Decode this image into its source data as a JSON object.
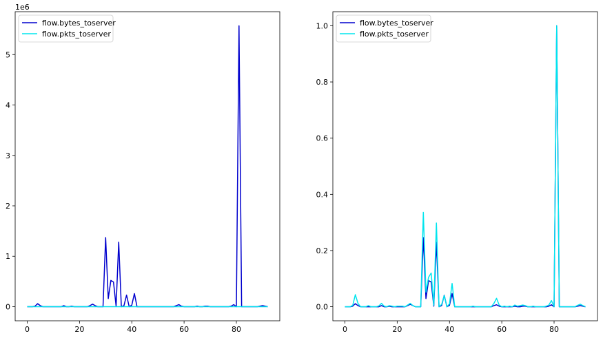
{
  "chart_data": [
    {
      "type": "line",
      "title": "",
      "xlabel": "",
      "ylabel": "",
      "offset_label": "1e6",
      "xlim": [
        -4.6,
        96.6
      ],
      "ylim": [
        -0.28,
        5.85
      ],
      "xticks": [
        0,
        20,
        40,
        60,
        80
      ],
      "yticks": [
        0,
        1,
        2,
        3,
        4,
        5
      ],
      "xtick_labels": [
        "0",
        "20",
        "40",
        "60",
        "80"
      ],
      "ytick_labels": [
        "0",
        "1",
        "2",
        "3",
        "4",
        "5"
      ],
      "grid": false,
      "legend_position": "upper-left",
      "series": [
        {
          "name": "flow.bytes_toserver",
          "color": "#0000cd",
          "x": [
            0,
            1,
            2,
            3,
            4,
            5,
            6,
            7,
            8,
            9,
            10,
            11,
            12,
            13,
            14,
            15,
            16,
            17,
            18,
            19,
            20,
            21,
            22,
            23,
            24,
            25,
            26,
            27,
            28,
            29,
            30,
            31,
            32,
            33,
            34,
            35,
            36,
            37,
            38,
            39,
            40,
            41,
            42,
            43,
            44,
            45,
            46,
            47,
            48,
            49,
            50,
            51,
            52,
            53,
            54,
            55,
            56,
            57,
            58,
            59,
            60,
            61,
            62,
            63,
            64,
            65,
            66,
            67,
            68,
            69,
            70,
            71,
            72,
            73,
            74,
            75,
            76,
            77,
            78,
            79,
            80,
            81,
            82,
            83,
            84,
            85,
            86,
            87,
            88,
            89,
            90,
            91,
            92
          ],
          "values": [
            0,
            0,
            0,
            0.01,
            0.06,
            0.02,
            0,
            0,
            0,
            0,
            0,
            0,
            0,
            0,
            0.02,
            0,
            0,
            0.01,
            0,
            0,
            0,
            0,
            0,
            0,
            0.02,
            0.05,
            0.02,
            0,
            0,
            0,
            1.37,
            0.16,
            0.52,
            0.49,
            0.01,
            1.28,
            0,
            0.02,
            0.23,
            0,
            0.03,
            0.26,
            0,
            0,
            0,
            0,
            0,
            0,
            0,
            0,
            0,
            0,
            0,
            0,
            0,
            0,
            0,
            0.02,
            0.04,
            0.01,
            0,
            0,
            0,
            0,
            0,
            0.01,
            0,
            0,
            0.01,
            0.01,
            0,
            0,
            0,
            0,
            0,
            0,
            0,
            0,
            0.01,
            0.04,
            0,
            5.57,
            0,
            0,
            0,
            0,
            0,
            0,
            0,
            0.01,
            0.02,
            0.01,
            0
          ]
        },
        {
          "name": "flow.pkts_toserver",
          "color": "#00e5ee",
          "x": [
            0,
            1,
            2,
            3,
            4,
            5,
            6,
            7,
            8,
            9,
            10,
            11,
            12,
            13,
            14,
            15,
            16,
            17,
            18,
            19,
            20,
            21,
            22,
            23,
            24,
            25,
            26,
            27,
            28,
            29,
            30,
            31,
            32,
            33,
            34,
            35,
            36,
            37,
            38,
            39,
            40,
            41,
            42,
            43,
            44,
            45,
            46,
            47,
            48,
            49,
            50,
            51,
            52,
            53,
            54,
            55,
            56,
            57,
            58,
            59,
            60,
            61,
            62,
            63,
            64,
            65,
            66,
            67,
            68,
            69,
            70,
            71,
            72,
            73,
            74,
            75,
            76,
            77,
            78,
            79,
            80,
            81,
            82,
            83,
            84,
            85,
            86,
            87,
            88,
            89,
            90,
            91,
            92
          ],
          "values": [
            0,
            0,
            0,
            0,
            0,
            0,
            0,
            0,
            0,
            0,
            0,
            0,
            0,
            0,
            0,
            0,
            0,
            0,
            0,
            0,
            0,
            0,
            0,
            0,
            0,
            0,
            0,
            0,
            0,
            0,
            0,
            0,
            0,
            0,
            0,
            0,
            0,
            0,
            0,
            0,
            0,
            0,
            0,
            0,
            0,
            0,
            0,
            0,
            0,
            0,
            0,
            0,
            0,
            0,
            0,
            0,
            0,
            0,
            0,
            0,
            0,
            0,
            0,
            0,
            0,
            0,
            0,
            0,
            0,
            0,
            0,
            0,
            0,
            0,
            0,
            0,
            0,
            0,
            0,
            0,
            0,
            0,
            0,
            0,
            0,
            0,
            0,
            0,
            0,
            0,
            0,
            0,
            0
          ]
        }
      ]
    },
    {
      "type": "line",
      "title": "",
      "xlabel": "",
      "ylabel": "",
      "xlim": [
        -4.6,
        96.6
      ],
      "ylim": [
        -0.05,
        1.05
      ],
      "xticks": [
        0,
        20,
        40,
        60,
        80
      ],
      "yticks": [
        0.0,
        0.2,
        0.4,
        0.6,
        0.8,
        1.0
      ],
      "xtick_labels": [
        "0",
        "20",
        "40",
        "60",
        "80"
      ],
      "ytick_labels": [
        "0.0",
        "0.2",
        "0.4",
        "0.6",
        "0.8",
        "1.0"
      ],
      "grid": false,
      "legend_position": "upper-left",
      "series": [
        {
          "name": "flow.bytes_toserver",
          "color": "#0000cd",
          "x": [
            0,
            1,
            2,
            3,
            4,
            5,
            6,
            7,
            8,
            9,
            10,
            11,
            12,
            13,
            14,
            15,
            16,
            17,
            18,
            19,
            20,
            21,
            22,
            23,
            24,
            25,
            26,
            27,
            28,
            29,
            30,
            31,
            32,
            33,
            34,
            35,
            36,
            37,
            38,
            39,
            40,
            41,
            42,
            43,
            44,
            45,
            46,
            47,
            48,
            49,
            50,
            51,
            52,
            53,
            54,
            55,
            56,
            57,
            58,
            59,
            60,
            61,
            62,
            63,
            64,
            65,
            66,
            67,
            68,
            69,
            70,
            71,
            72,
            73,
            74,
            75,
            76,
            77,
            78,
            79,
            80,
            81,
            82,
            83,
            84,
            85,
            86,
            87,
            88,
            89,
            90,
            91,
            92
          ],
          "values": [
            0,
            0,
            0,
            0.002,
            0.011,
            0.004,
            0,
            0,
            0,
            0,
            0,
            0,
            0,
            0,
            0.004,
            0,
            0,
            0.002,
            0,
            0,
            0,
            0,
            0,
            0,
            0.004,
            0.009,
            0.004,
            0,
            0,
            0,
            0.246,
            0.029,
            0.093,
            0.088,
            0.002,
            0.23,
            0,
            0.004,
            0.041,
            0,
            0.005,
            0.047,
            0,
            0,
            0,
            0,
            0,
            0,
            0,
            0,
            0,
            0,
            0,
            0,
            0,
            0,
            0,
            0.004,
            0.007,
            0.002,
            0,
            0,
            0,
            0,
            0,
            0.002,
            0,
            0,
            0.002,
            0.002,
            0,
            0,
            0,
            0,
            0,
            0,
            0,
            0,
            0.002,
            0.007,
            0,
            1.0,
            0,
            0,
            0,
            0,
            0,
            0,
            0,
            0.002,
            0.004,
            0.002,
            0
          ]
        },
        {
          "name": "flow.pkts_toserver",
          "color": "#00e5ee",
          "x": [
            0,
            1,
            2,
            3,
            4,
            5,
            6,
            7,
            8,
            9,
            10,
            11,
            12,
            13,
            14,
            15,
            16,
            17,
            18,
            19,
            20,
            21,
            22,
            23,
            24,
            25,
            26,
            27,
            28,
            29,
            30,
            31,
            32,
            33,
            34,
            35,
            36,
            37,
            38,
            39,
            40,
            41,
            42,
            43,
            44,
            45,
            46,
            47,
            48,
            49,
            50,
            51,
            52,
            53,
            54,
            55,
            56,
            57,
            58,
            59,
            60,
            61,
            62,
            63,
            64,
            65,
            66,
            67,
            68,
            69,
            70,
            71,
            72,
            73,
            74,
            75,
            76,
            77,
            78,
            79,
            80,
            81,
            82,
            83,
            84,
            85,
            86,
            87,
            88,
            89,
            90,
            91,
            92
          ],
          "values": [
            0,
            0,
            0,
            0.005,
            0.043,
            0.012,
            0,
            0,
            0,
            0.004,
            0,
            0,
            0,
            0.003,
            0.012,
            0.002,
            0,
            0.004,
            0.002,
            0,
            0.002,
            0.002,
            0.002,
            0,
            0.006,
            0.012,
            0.004,
            0,
            0,
            0,
            0.336,
            0.052,
            0.105,
            0.12,
            0.005,
            0.298,
            0,
            0.008,
            0.04,
            0,
            0.01,
            0.083,
            0,
            0,
            0,
            0,
            0,
            0,
            0,
            0.002,
            0,
            0,
            0,
            0,
            0,
            0,
            0,
            0.012,
            0.03,
            0.006,
            0,
            0.002,
            0,
            0.002,
            0,
            0.006,
            0.002,
            0.004,
            0.006,
            0.004,
            0,
            0,
            0.002,
            0,
            0,
            0,
            0,
            0.002,
            0.006,
            0.022,
            0,
            1.0,
            0,
            0,
            0,
            0,
            0,
            0,
            0,
            0.005,
            0.009,
            0.004,
            0
          ]
        }
      ]
    }
  ]
}
